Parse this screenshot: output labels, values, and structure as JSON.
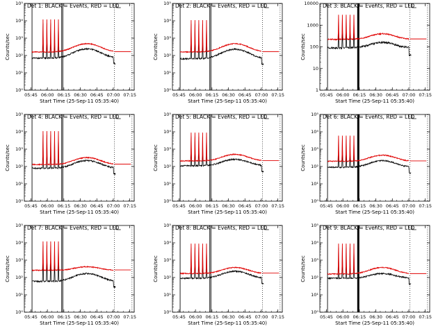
{
  "chart_data": {
    "type": "line",
    "layout": "3x3 grid",
    "grid": false,
    "y_scale": "log",
    "xlabel": "Start Time (25-Sep-11 05:35:40)",
    "ylabel": "Counts/sec",
    "x_range": [
      "05:39",
      "07:19"
    ],
    "x_ticks": [
      "05:45",
      "06:00",
      "06:15",
      "06:30",
      "06:45",
      "07:00",
      "07:15"
    ],
    "series_legend": "BLACK = Events, RED = LLD",
    "colors": {
      "events": "#000000",
      "lld": "#e00000"
    },
    "panels": [
      {
        "title": "Det 1: BLACK = Events, RED = LLD",
        "ylim": [
          1,
          100000
        ],
        "y_ticks": [
          {
            "v": 1,
            "label": "10⁰"
          },
          {
            "v": 10,
            "label": "10¹"
          },
          {
            "v": 100,
            "label": "10²"
          },
          {
            "v": 1000,
            "label": "10³"
          },
          {
            "v": 10000,
            "label": "10⁴"
          },
          {
            "v": 100000,
            "label": "10⁵"
          }
        ],
        "events_base": 70,
        "events_peak": 240,
        "lld_base": 160,
        "lld_peak": 480,
        "spike_peak": 12000,
        "vlines": [
          "05:46",
          "06:13",
          "06:14"
        ],
        "thick_vline": false
      },
      {
        "title": "Det 2: BLACK = Events, RED = LLD",
        "ylim": [
          1,
          100000
        ],
        "y_ticks": [
          {
            "v": 1,
            "label": "10⁰"
          },
          {
            "v": 10,
            "label": "10¹"
          },
          {
            "v": 100,
            "label": "10²"
          },
          {
            "v": 1000,
            "label": "10³"
          },
          {
            "v": 10000,
            "label": "10⁴"
          },
          {
            "v": 100000,
            "label": "10⁵"
          }
        ],
        "events_base": 65,
        "events_peak": 230,
        "lld_base": 160,
        "lld_peak": 480,
        "spike_peak": 11000,
        "vlines": [
          "05:46",
          "06:13",
          "06:14"
        ],
        "thick_vline": false
      },
      {
        "title": "Det 3: BLACK = Events, RED = LLD",
        "ylim": [
          1,
          10000
        ],
        "y_ticks": [
          {
            "v": 1,
            "label": "1"
          },
          {
            "v": 10,
            "label": "10"
          },
          {
            "v": 100,
            "label": "100"
          },
          {
            "v": 1000,
            "label": "1000"
          },
          {
            "v": 10000,
            "label": "10000"
          }
        ],
        "events_base": 90,
        "events_peak": 160,
        "lld_base": 220,
        "lld_peak": 400,
        "spike_peak": 3000,
        "vlines": [
          "05:46",
          "06:14"
        ],
        "thick_vline": true
      },
      {
        "title": "Det 4: BLACK = Events, RED = LLD",
        "ylim": [
          1,
          100000
        ],
        "y_ticks": [
          {
            "v": 1,
            "label": "10⁰"
          },
          {
            "v": 10,
            "label": "10¹"
          },
          {
            "v": 100,
            "label": "10²"
          },
          {
            "v": 1000,
            "label": "10³"
          },
          {
            "v": 10000,
            "label": "10⁴"
          },
          {
            "v": 100000,
            "label": "10⁵"
          }
        ],
        "events_base": 80,
        "events_peak": 220,
        "lld_base": 130,
        "lld_peak": 330,
        "spike_peak": 11000,
        "vlines": [
          "05:46",
          "06:13",
          "06:14"
        ],
        "thick_vline": false
      },
      {
        "title": "Det 5: BLACK = Events, RED = LLD",
        "ylim": [
          1,
          100000
        ],
        "y_ticks": [
          {
            "v": 1,
            "label": "10⁰"
          },
          {
            "v": 10,
            "label": "10¹"
          },
          {
            "v": 100,
            "label": "10²"
          },
          {
            "v": 1000,
            "label": "10³"
          },
          {
            "v": 10000,
            "label": "10⁴"
          },
          {
            "v": 100000,
            "label": "10⁵"
          }
        ],
        "events_base": 110,
        "events_peak": 260,
        "lld_base": 210,
        "lld_peak": 500,
        "spike_peak": 9000,
        "vlines": [
          "05:46",
          "06:13",
          "06:14"
        ],
        "thick_vline": false
      },
      {
        "title": "Det 6: BLACK = Events, RED = LLD",
        "ylim": [
          1,
          100000
        ],
        "y_ticks": [
          {
            "v": 1,
            "label": "10⁰"
          },
          {
            "v": 10,
            "label": "10¹"
          },
          {
            "v": 100,
            "label": "10²"
          },
          {
            "v": 1000,
            "label": "10³"
          },
          {
            "v": 10000,
            "label": "10⁴"
          },
          {
            "v": 100000,
            "label": "10⁵"
          }
        ],
        "events_base": 90,
        "events_peak": 220,
        "lld_base": 200,
        "lld_peak": 450,
        "spike_peak": 6000,
        "vlines": [
          "05:46",
          "06:14"
        ],
        "thick_vline": true
      },
      {
        "title": "Det 7: BLACK = Events, RED = LLD",
        "ylim": [
          1,
          100000
        ],
        "y_ticks": [
          {
            "v": 1,
            "label": "10⁰"
          },
          {
            "v": 10,
            "label": "10¹"
          },
          {
            "v": 100,
            "label": "10²"
          },
          {
            "v": 1000,
            "label": "10³"
          },
          {
            "v": 10000,
            "label": "10⁴"
          },
          {
            "v": 100000,
            "label": "10⁵"
          }
        ],
        "events_base": 60,
        "events_peak": 170,
        "lld_base": 260,
        "lld_peak": 420,
        "spike_peak": 12000,
        "vlines": [
          "05:46",
          "06:13",
          "06:14"
        ],
        "thick_vline": false
      },
      {
        "title": "Det 8: BLACK = Events, RED = LLD",
        "ylim": [
          1,
          100000
        ],
        "y_ticks": [
          {
            "v": 1,
            "label": "10⁰"
          },
          {
            "v": 10,
            "label": "10¹"
          },
          {
            "v": 100,
            "label": "10²"
          },
          {
            "v": 1000,
            "label": "10³"
          },
          {
            "v": 10000,
            "label": "10⁴"
          },
          {
            "v": 100000,
            "label": "10⁵"
          }
        ],
        "events_base": 90,
        "events_peak": 230,
        "lld_base": 170,
        "lld_peak": 380,
        "spike_peak": 9000,
        "vlines": [
          "05:46",
          "06:13",
          "06:14"
        ],
        "thick_vline": false
      },
      {
        "title": "Det 9: BLACK = Events, RED = LLD",
        "ylim": [
          1,
          100000
        ],
        "y_ticks": [
          {
            "v": 1,
            "label": "10⁰"
          },
          {
            "v": 10,
            "label": "10¹"
          },
          {
            "v": 100,
            "label": "10²"
          },
          {
            "v": 1000,
            "label": "10³"
          },
          {
            "v": 10000,
            "label": "10⁴"
          },
          {
            "v": 100000,
            "label": "10⁵"
          }
        ],
        "events_base": 90,
        "events_peak": 170,
        "lld_base": 160,
        "lld_peak": 380,
        "spike_peak": 9000,
        "vlines": [
          "05:46",
          "06:14"
        ],
        "thick_vline": true
      }
    ]
  }
}
